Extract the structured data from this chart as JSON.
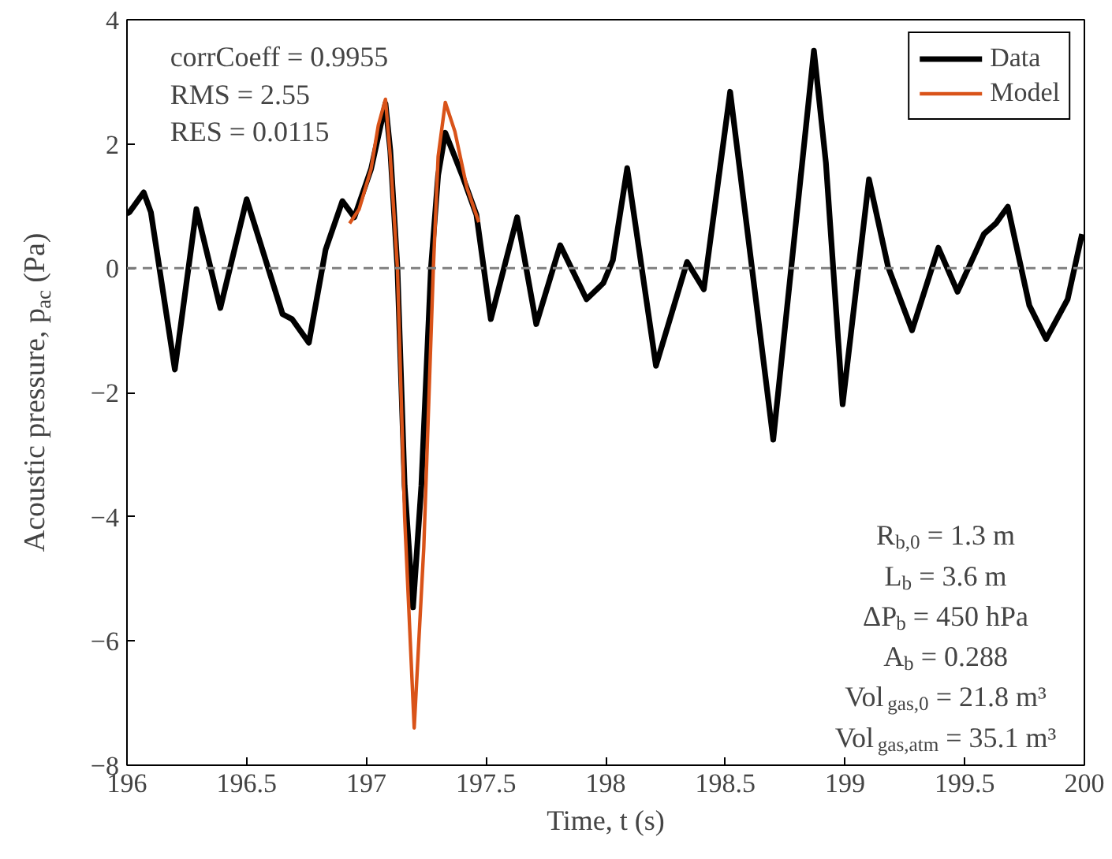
{
  "chart_data": {
    "type": "line",
    "xlabel": "Time, t (s)",
    "ylabel": "Acoustic pressure, p$_{ac}$ (Pa)",
    "xlim": [
      196,
      200
    ],
    "ylim": [
      -8,
      4
    ],
    "xticks": [
      196,
      196.5,
      197,
      197.5,
      198,
      198.5,
      199,
      199.5,
      200
    ],
    "yticks": [
      {
        "value": -8,
        "label": "−8"
      },
      {
        "value": -6,
        "label": "−6"
      },
      {
        "value": -4,
        "label": "−4"
      },
      {
        "value": -2,
        "label": "−2"
      },
      0,
      2,
      4
    ],
    "grid": false,
    "legend": "top right",
    "line_style": "solid",
    "marker": "none",
    "ref_lines": [
      {
        "axis": "y",
        "value": 0,
        "label": null,
        "color": "#808080",
        "line_style": "dashed"
      }
    ],
    "annotations": [
      "corrCoeff = 0.9955",
      "RMS = 2.55",
      "RES = 0.0115",
      "R$_{b,0}$ = 1.3 m",
      "L$_{b}$ = 3.6 m",
      "ΔP$_{b}$ = 450 hPa",
      "A$_{b}$ = 0.288",
      "Vol$_{gas,0}$ = 21.8 m³",
      "Vol$_{gas,atm}$ = 35.1 m³"
    ],
    "series": [
      {
        "name": "Data",
        "color": "#000000",
        "x": [
          196.0,
          196.01,
          196.07,
          196.1,
          196.2,
          196.29,
          196.39,
          196.5,
          196.65,
          196.69,
          196.76,
          196.83,
          196.9,
          196.95,
          197.02,
          197.08,
          197.1,
          197.13,
          197.16,
          197.195,
          197.23,
          197.27,
          197.3,
          197.33,
          197.4,
          197.46,
          197.52,
          197.63,
          197.71,
          197.81,
          197.92,
          197.99,
          198.03,
          198.09,
          198.21,
          198.34,
          198.41,
          198.52,
          198.7,
          198.87,
          198.92,
          198.99,
          199.1,
          199.18,
          199.28,
          199.39,
          199.47,
          199.58,
          199.63,
          199.68,
          199.77,
          199.84,
          199.93,
          199.99
        ],
        "values": [
          0.88,
          0.9,
          1.22,
          0.9,
          -1.63,
          0.95,
          -0.64,
          1.11,
          -0.74,
          -0.82,
          -1.2,
          0.3,
          1.08,
          0.82,
          1.6,
          2.65,
          1.9,
          0.0,
          -3.5,
          -5.46,
          -3.5,
          0.0,
          1.5,
          2.18,
          1.5,
          0.86,
          -0.82,
          0.82,
          -0.9,
          0.37,
          -0.5,
          -0.24,
          0.13,
          1.61,
          -1.57,
          0.1,
          -0.34,
          2.84,
          -2.76,
          3.5,
          1.7,
          -2.19,
          1.43,
          0.02,
          -1.0,
          0.33,
          -0.38,
          0.55,
          0.72,
          0.99,
          -0.6,
          -1.14,
          -0.5,
          0.55
        ]
      },
      {
        "name": "Model",
        "color": "#d95319",
        "x": [
          196.93,
          196.97,
          197.02,
          197.05,
          197.08,
          197.1,
          197.13,
          197.16,
          197.2,
          197.24,
          197.28,
          197.3,
          197.33,
          197.37,
          197.42,
          197.47
        ],
        "values": [
          0.72,
          0.95,
          1.6,
          2.3,
          2.72,
          1.8,
          0.0,
          -4.0,
          -7.4,
          -4.5,
          0.0,
          1.8,
          2.67,
          2.2,
          1.3,
          0.74
        ]
      }
    ]
  }
}
